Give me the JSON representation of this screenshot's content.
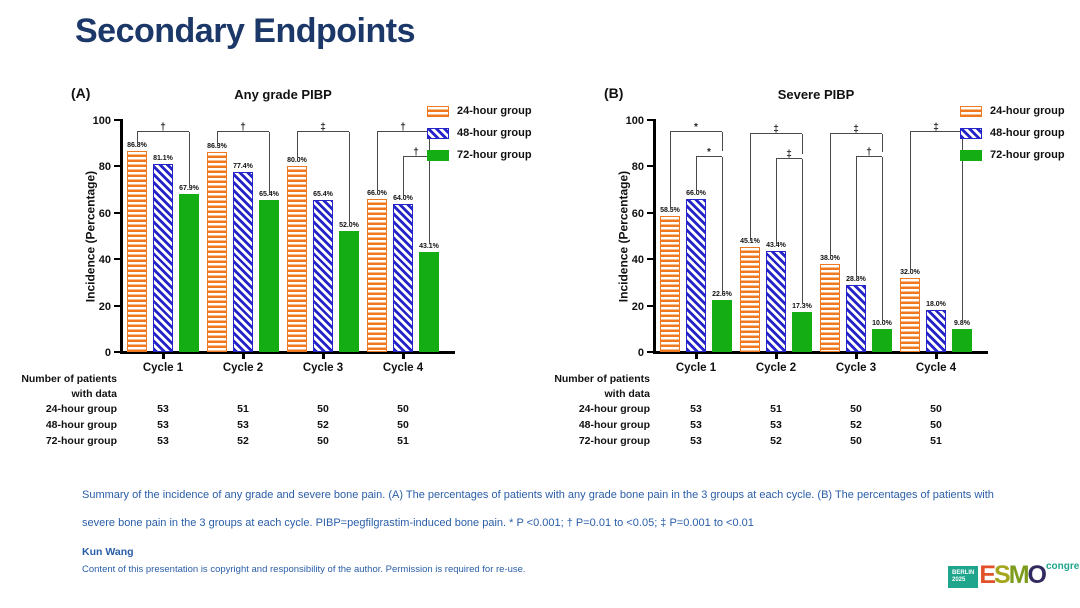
{
  "slide": {
    "title": "Secondary Endpoints",
    "caption": "Summary of the incidence of any grade and severe bone pain. (A) The percentages of patients with any grade bone pain in the 3 groups at each cycle. (B) The percentages of patients with severe bone pain in the 3 groups at each cycle. PIBP=pegfilgrastim-induced bone pain. * P <0.001; † P=0.01 to <0.05; ‡ P=0.001 to <0.01",
    "author": "Kun Wang",
    "copyright": "Content of this presentation is copyright and responsibility of the author. Permission is required for re-use."
  },
  "colors": {
    "navy": "#1B3869",
    "capblue": "#2A5EA8",
    "orange": "#F0781F",
    "blue": "#2424C8",
    "green": "#14AD14"
  },
  "legend": [
    {
      "label": "24-hour group",
      "pattern": "orange-hstripes"
    },
    {
      "label": "48-hour group",
      "pattern": "blue-dstripes"
    },
    {
      "label": "72-hour group",
      "pattern": "green-solid"
    }
  ],
  "table": {
    "header_line1": "Number of patients",
    "header_line2": "with data",
    "rows": [
      {
        "label": "24-hour group",
        "values": [
          53,
          51,
          50,
          50
        ]
      },
      {
        "label": "48-hour group",
        "values": [
          53,
          53,
          52,
          50
        ]
      },
      {
        "label": "72-hour group",
        "values": [
          53,
          52,
          50,
          51
        ]
      }
    ]
  },
  "chart_data": [
    {
      "type": "bar",
      "panel": "(A)",
      "title": "Any grade PIBP",
      "ylabel": "Incidence (Percentage)",
      "ylim": [
        0,
        100
      ],
      "yticks": [
        0,
        20,
        40,
        60,
        80,
        100
      ],
      "categories": [
        "Cycle 1",
        "Cycle 2",
        "Cycle 3",
        "Cycle 4"
      ],
      "series": [
        {
          "name": "24-hour group",
          "values": [
            86.8,
            86.3,
            80.0,
            66.0
          ]
        },
        {
          "name": "48-hour group",
          "values": [
            81.1,
            77.4,
            65.4,
            64.0
          ]
        },
        {
          "name": "72-hour group",
          "values": [
            67.9,
            65.4,
            52.0,
            43.1
          ]
        }
      ],
      "brackets": [
        {
          "cycle": 0,
          "from": 0,
          "to": 2,
          "y": 95,
          "ldrop": 89.5,
          "rdrop": 71,
          "symbol": "†"
        },
        {
          "cycle": 1,
          "from": 0,
          "to": 2,
          "y": 95,
          "ldrop": 89,
          "rdrop": 68.5,
          "symbol": "†"
        },
        {
          "cycle": 2,
          "from": 0,
          "to": 2,
          "y": 95,
          "ldrop": 83,
          "rdrop": 55,
          "symbol": "‡"
        },
        {
          "cycle": 3,
          "from": 0,
          "to": 2,
          "y": 95,
          "ldrop": 69,
          "rdrop": 86.5,
          "symbol": "†"
        },
        {
          "cycle": 3,
          "from": 1,
          "to": 2,
          "y": 84,
          "ldrop": 67,
          "rdrop": 46.5,
          "symbol": "†"
        }
      ]
    },
    {
      "type": "bar",
      "panel": "(B)",
      "title": "Severe PIBP",
      "ylabel": "Incidence (Percentage)",
      "ylim": [
        0,
        100
      ],
      "yticks": [
        0,
        20,
        40,
        60,
        80,
        100
      ],
      "categories": [
        "Cycle 1",
        "Cycle 2",
        "Cycle 3",
        "Cycle 4"
      ],
      "series": [
        {
          "name": "24-hour group",
          "values": [
            58.5,
            45.1,
            38.0,
            32.0
          ]
        },
        {
          "name": "48-hour group",
          "values": [
            66.0,
            43.4,
            28.8,
            18.0
          ]
        },
        {
          "name": "72-hour group",
          "values": [
            22.6,
            17.3,
            10.0,
            9.8
          ]
        }
      ],
      "brackets": [
        {
          "cycle": 0,
          "from": 0,
          "to": 2,
          "y": 95,
          "ldrop": 61.5,
          "rdrop": 86.5,
          "symbol": "*"
        },
        {
          "cycle": 0,
          "from": 1,
          "to": 2,
          "y": 84,
          "ldrop": 69,
          "rdrop": 25.5,
          "symbol": "*"
        },
        {
          "cycle": 1,
          "from": 0,
          "to": 2,
          "y": 94,
          "ldrop": 48,
          "rdrop": 85.5,
          "symbol": "‡"
        },
        {
          "cycle": 1,
          "from": 1,
          "to": 2,
          "y": 83,
          "ldrop": 46.5,
          "rdrop": 20.5,
          "symbol": "‡"
        },
        {
          "cycle": 2,
          "from": 0,
          "to": 2,
          "y": 94,
          "ldrop": 41,
          "rdrop": 86,
          "symbol": "‡"
        },
        {
          "cycle": 2,
          "from": 1,
          "to": 2,
          "y": 84,
          "ldrop": 32,
          "rdrop": 13,
          "symbol": "†"
        },
        {
          "cycle": 3,
          "from": 0,
          "to": 2,
          "y": 95,
          "ldrop": 35,
          "rdrop": 13,
          "symbol": "‡"
        }
      ]
    }
  ],
  "logo": {
    "city": "BERLIN",
    "year": "2025",
    "letters": [
      "E",
      "S",
      "M",
      "O"
    ],
    "congress": "congress"
  }
}
